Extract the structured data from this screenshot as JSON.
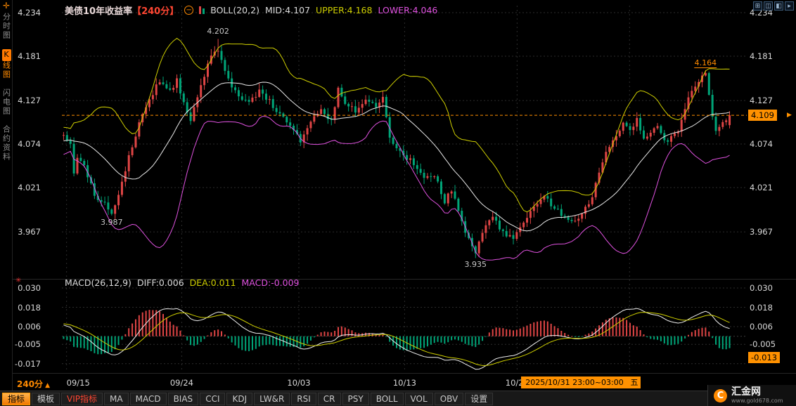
{
  "icons": {
    "crosshair": "✛",
    "minus": "−",
    "marker": "✳",
    "logo": "Ϲ",
    "price_arrow": "▶"
  },
  "colors": {
    "up": "#e04545",
    "down": "#00a578",
    "boll_upper": "#cfcf00",
    "boll_mid": "#e9e9e9",
    "boll_lower": "#e052e0",
    "grid": "#2c2c2c",
    "zero": "#3c3c3c",
    "accent": "#ff9100",
    "dif": "#f0f0f0",
    "dea": "#cfcf00",
    "divider": "#262626"
  },
  "sidebar": {
    "items": [
      {
        "label": "分时图",
        "active": false
      },
      {
        "label": "K线图",
        "active": true
      },
      {
        "label": "闪电图",
        "active": false
      },
      {
        "label": "合约资料",
        "active": false
      }
    ]
  },
  "header": {
    "title": "美债10年收益率",
    "period": "【240分】",
    "indicator": "BOLL(20,2)",
    "mid_label": "MID:4.107",
    "upper_label": "UPPER:4.168",
    "lower_label": "LOWER:4.046"
  },
  "top_right_icons": [
    {
      "name": "window-tile-icon",
      "glyph": "⊞"
    },
    {
      "name": "chart-window-icon",
      "glyph": "◫"
    },
    {
      "name": "chart-window2-icon",
      "glyph": "◧"
    },
    {
      "name": "collapse-right-icon",
      "glyph": "▸"
    }
  ],
  "main_axis": {
    "labels": [
      "4.234",
      "4.181",
      "4.127",
      "4.074",
      "4.021",
      "3.967"
    ],
    "values": [
      4.234,
      4.181,
      4.127,
      4.074,
      4.021,
      3.967
    ],
    "price_top": 4.2426,
    "price_bottom": 3.914,
    "current_price": 4.109,
    "current_label": "4.109"
  },
  "macd": {
    "header": {
      "name": "MACD(26,12,9)",
      "diff": "DIFF:0.006",
      "dea": "DEA:0.011",
      "macd": "MACD:-0.009"
    },
    "axis_labels_left": [
      "0.030",
      "0.018",
      "0.006",
      "-0.005",
      "-0.017"
    ],
    "axis_labels_right": [
      "0.030",
      "0.018",
      "0.006",
      "-0.005"
    ],
    "axis_values": [
      0.03,
      0.018,
      0.006,
      -0.005,
      -0.017
    ],
    "vmax": 0.0335,
    "vmin": -0.0215,
    "current_value": -0.013,
    "current_label": "-0.013"
  },
  "x_axis": {
    "period_label": "240分",
    "period_arrow": "▲",
    "ticks": [
      {
        "label": "09/15",
        "f": 0.007
      },
      {
        "label": "09/24",
        "f": 0.179
      },
      {
        "label": "10/03",
        "f": 0.354
      },
      {
        "label": "10/13",
        "f": 0.512
      },
      {
        "label": "10/22",
        "f": 0.68
      },
      {
        "label": "10/31",
        "f": 0.848
      }
    ],
    "time_box": "2025/10/31 23:00~03:00",
    "weekday": "五"
  },
  "toolbar": {
    "items": [
      {
        "label": "指标",
        "style": "active"
      },
      {
        "label": "模板",
        "style": "normal"
      },
      {
        "label": "VIP指标",
        "style": "vip"
      },
      {
        "label": "MA",
        "style": "normal"
      },
      {
        "label": "MACD",
        "style": "normal"
      },
      {
        "label": "BIAS",
        "style": "normal"
      },
      {
        "label": "CCI",
        "style": "normal"
      },
      {
        "label": "KDJ",
        "style": "normal"
      },
      {
        "label": "LW&R",
        "style": "normal"
      },
      {
        "label": "RSI",
        "style": "normal"
      },
      {
        "label": "CR",
        "style": "normal"
      },
      {
        "label": "PSY",
        "style": "normal"
      },
      {
        "label": "BOLL",
        "style": "normal"
      },
      {
        "label": "VOL",
        "style": "normal"
      },
      {
        "label": "OBV",
        "style": "normal"
      },
      {
        "label": "设置",
        "style": "normal"
      }
    ]
  },
  "watermark": {
    "brand": "汇金网",
    "url": "www.gold678.com"
  },
  "chart_data": {
    "type": "candlestick",
    "symbol": "美债10年收益率",
    "period": "240分",
    "panes": [
      "price + BOLL(20,2)",
      "MACD(26,12,9)"
    ],
    "bars_visible": 195,
    "warmup_bars": 40,
    "ylim": [
      3.914,
      4.2426
    ],
    "waypoints": [
      [
        -40,
        4.005
      ],
      [
        -30,
        4.035
      ],
      [
        -20,
        4.06
      ],
      [
        -10,
        4.078
      ],
      [
        -3,
        4.09
      ],
      [
        0,
        4.085
      ],
      [
        2,
        4.072
      ],
      [
        3,
        4.038
      ],
      [
        4,
        4.058
      ],
      [
        6,
        4.046
      ],
      [
        9,
        4.012
      ],
      [
        12,
        4.002
      ],
      [
        14,
        3.991
      ],
      [
        16,
        4.012
      ],
      [
        19,
        4.058
      ],
      [
        22,
        4.098
      ],
      [
        25,
        4.128
      ],
      [
        28,
        4.152
      ],
      [
        31,
        4.138
      ],
      [
        33,
        4.152
      ],
      [
        35,
        4.122
      ],
      [
        37,
        4.104
      ],
      [
        39,
        4.128
      ],
      [
        41,
        4.158
      ],
      [
        43,
        4.183
      ],
      [
        45,
        4.19
      ],
      [
        48,
        4.152
      ],
      [
        51,
        4.131
      ],
      [
        54,
        4.124
      ],
      [
        57,
        4.139
      ],
      [
        60,
        4.126
      ],
      [
        63,
        4.11
      ],
      [
        66,
        4.096
      ],
      [
        69,
        4.078
      ],
      [
        72,
        4.099
      ],
      [
        75,
        4.118
      ],
      [
        78,
        4.101
      ],
      [
        80,
        4.14
      ],
      [
        82,
        4.124
      ],
      [
        85,
        4.114
      ],
      [
        88,
        4.129
      ],
      [
        91,
        4.121
      ],
      [
        93,
        4.129
      ],
      [
        95,
        4.082
      ],
      [
        97,
        4.066
      ],
      [
        99,
        4.06
      ],
      [
        102,
        4.051
      ],
      [
        105,
        4.032
      ],
      [
        108,
        4.036
      ],
      [
        111,
        4.004
      ],
      [
        113,
        4.018
      ],
      [
        115,
        3.992
      ],
      [
        117,
        3.965
      ],
      [
        119,
        3.95
      ],
      [
        120,
        3.941
      ],
      [
        122,
        3.968
      ],
      [
        125,
        3.986
      ],
      [
        128,
        3.966
      ],
      [
        131,
        3.96
      ],
      [
        134,
        3.976
      ],
      [
        137,
        3.999
      ],
      [
        140,
        4.011
      ],
      [
        143,
        3.996
      ],
      [
        146,
        3.986
      ],
      [
        149,
        3.981
      ],
      [
        152,
        3.996
      ],
      [
        154,
        4.01
      ],
      [
        157,
        4.054
      ],
      [
        160,
        4.079
      ],
      [
        163,
        4.099
      ],
      [
        165,
        4.091
      ],
      [
        167,
        4.104
      ],
      [
        169,
        4.082
      ],
      [
        171,
        4.09
      ],
      [
        173,
        4.095
      ],
      [
        175,
        4.077
      ],
      [
        177,
        4.082
      ],
      [
        179,
        4.092
      ],
      [
        181,
        4.118
      ],
      [
        183,
        4.14
      ],
      [
        185,
        4.152
      ],
      [
        187,
        4.158
      ],
      [
        188,
        4.135
      ],
      [
        189,
        4.105
      ],
      [
        190,
        4.088
      ],
      [
        192,
        4.1
      ],
      [
        194,
        4.107
      ]
    ],
    "anchors": {
      "peak": {
        "bar": 45,
        "price": 4.202
      },
      "low1": {
        "bar": 14,
        "price": 3.987
      },
      "low2": {
        "bar": 120,
        "price": 3.935
      },
      "high2": {
        "bar": 187,
        "price": 4.164
      },
      "last_close": 4.109
    },
    "boll": {
      "period": 20,
      "mult": 2
    },
    "macd_params": [
      26,
      12,
      9
    ],
    "annotations": [
      {
        "text": "4.202",
        "bar": 45,
        "side": "above",
        "color": "#c8c8c8",
        "underline": false
      },
      {
        "text": "3.987",
        "bar": 14,
        "side": "below",
        "color": "#c8c8c8",
        "underline": false
      },
      {
        "text": "3.935",
        "bar": 120,
        "side": "below",
        "color": "#c8c8c8",
        "underline": false
      },
      {
        "text": "4.164",
        "bar": 187,
        "side": "above",
        "color": "#ff8a00",
        "underline": true
      }
    ]
  }
}
